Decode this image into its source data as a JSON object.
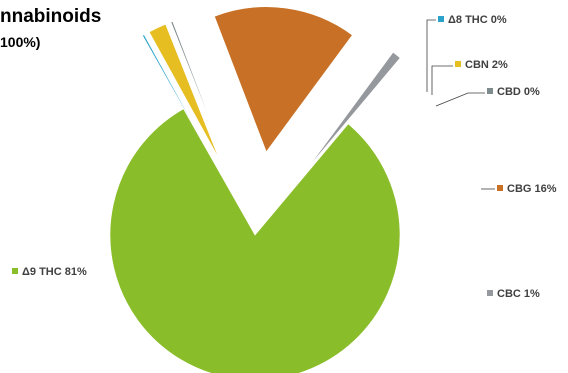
{
  "chart_data": {
    "type": "pie",
    "title": "nnabinoids",
    "subtitle": "100%)",
    "slices": [
      {
        "label": "Δ9 THC",
        "value": 81,
        "percent_label": "81%",
        "color": "#8ABD2A",
        "exploded": false
      },
      {
        "label": "Δ8 THC",
        "value": 0.2,
        "percent_label": "0%",
        "color": "#2AA2C9",
        "exploded": true
      },
      {
        "label": "CBN",
        "value": 2,
        "percent_label": "2%",
        "color": "#E6BE22",
        "exploded": true
      },
      {
        "label": "CBD",
        "value": 0.2,
        "percent_label": "0%",
        "color": "#7F8C8D",
        "exploded": true
      },
      {
        "label": "CBG",
        "value": 16,
        "percent_label": "16%",
        "color": "#C87126",
        "exploded": true
      },
      {
        "label": "CBC",
        "value": 1,
        "percent_label": "1%",
        "color": "#95989C",
        "exploded": true
      }
    ],
    "legend": "labels beside slices"
  }
}
